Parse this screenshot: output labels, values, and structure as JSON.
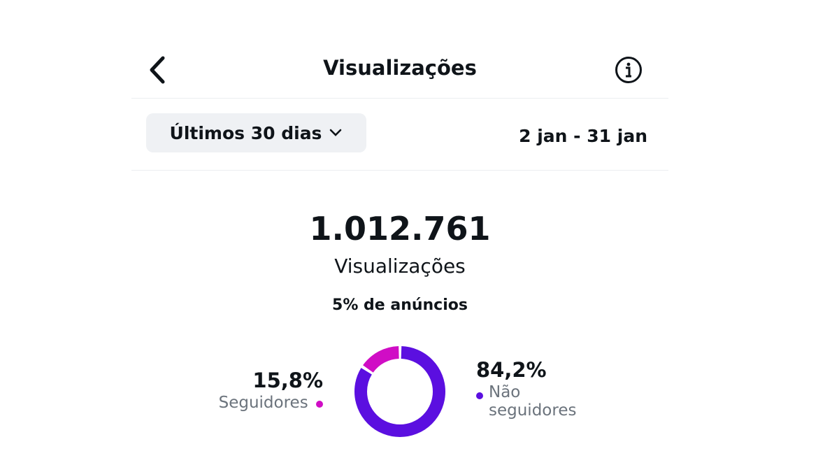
{
  "header": {
    "title": "Visualizações",
    "back_icon": "chevron-left-icon",
    "info_icon": "info-icon"
  },
  "filter": {
    "selected": "Últimos 30 dias",
    "date_range": "2 jan - 31 jan"
  },
  "summary": {
    "total": "1.012.761",
    "label": "Visualizações",
    "ads": "5% de anúncios"
  },
  "breakdown": {
    "followers": {
      "pct": "15,8%",
      "label": "Seguidores",
      "value": 15.8,
      "color": "#d00dc5"
    },
    "non_followers": {
      "pct": "84,2%",
      "label_line1": "Não",
      "label_line2": "seguidores",
      "value": 84.2,
      "color": "#5b0fe0"
    }
  }
}
